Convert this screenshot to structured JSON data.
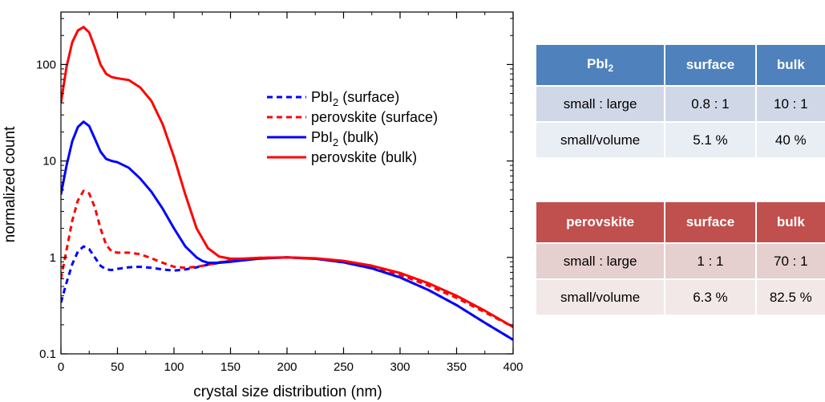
{
  "chart_data": {
    "type": "line",
    "xlabel": "crystal size distribution (nm)",
    "ylabel": "normalized count",
    "xlim": [
      0,
      400
    ],
    "ylim": [
      0.1,
      350
    ],
    "y_scale": "log",
    "x_ticks": [
      0,
      50,
      100,
      150,
      200,
      250,
      300,
      350,
      400
    ],
    "y_ticks": [
      0.1,
      1,
      10,
      100
    ],
    "y_tick_labels": [
      "0.1",
      "1",
      "10",
      "100"
    ],
    "grid": false,
    "legend_position": "upper-right",
    "series": [
      {
        "name": "PbI2 (surface)",
        "color": "#0000ff",
        "style": "dashed",
        "x": [
          0,
          5,
          10,
          15,
          20,
          25,
          30,
          35,
          40,
          45,
          50,
          60,
          70,
          80,
          90,
          100,
          110,
          120,
          130,
          140,
          150,
          160,
          175,
          200,
          225,
          250,
          275,
          300,
          325,
          350,
          375,
          400
        ],
        "y": [
          0.34,
          0.55,
          0.85,
          1.15,
          1.3,
          1.22,
          1.0,
          0.82,
          0.75,
          0.74,
          0.76,
          0.79,
          0.8,
          0.78,
          0.75,
          0.73,
          0.75,
          0.79,
          0.84,
          0.88,
          0.92,
          0.95,
          0.98,
          1.0,
          0.97,
          0.89,
          0.77,
          0.62,
          0.46,
          0.32,
          0.21,
          0.14
        ]
      },
      {
        "name": "perovskite (surface)",
        "color": "#ff0000",
        "style": "dashed",
        "x": [
          0,
          5,
          10,
          15,
          20,
          25,
          30,
          35,
          40,
          45,
          50,
          60,
          70,
          80,
          90,
          100,
          110,
          120,
          130,
          140,
          150,
          160,
          175,
          200,
          225,
          250,
          275,
          300,
          325,
          350,
          375,
          400
        ],
        "y": [
          0.6,
          1.2,
          2.4,
          3.9,
          4.9,
          4.6,
          3.3,
          2.0,
          1.35,
          1.15,
          1.12,
          1.12,
          1.08,
          0.98,
          0.88,
          0.8,
          0.78,
          0.8,
          0.84,
          0.89,
          0.93,
          0.96,
          0.99,
          1.0,
          0.97,
          0.9,
          0.8,
          0.66,
          0.51,
          0.38,
          0.27,
          0.19
        ]
      },
      {
        "name": "PbI2 (bulk)",
        "color": "#0000ff",
        "style": "solid",
        "x": [
          0,
          5,
          10,
          15,
          20,
          25,
          30,
          35,
          40,
          45,
          50,
          60,
          70,
          80,
          90,
          100,
          110,
          120,
          125,
          130,
          140,
          150,
          160,
          175,
          200,
          225,
          250,
          275,
          300,
          325,
          350,
          375,
          400
        ],
        "y": [
          4.5,
          9.0,
          16,
          22.5,
          25.5,
          23,
          17,
          12.5,
          10.5,
          10.0,
          9.7,
          8.5,
          6.6,
          4.8,
          3.2,
          2.0,
          1.3,
          1.0,
          0.92,
          0.88,
          0.88,
          0.9,
          0.93,
          0.97,
          1.0,
          0.97,
          0.89,
          0.77,
          0.62,
          0.46,
          0.32,
          0.21,
          0.14
        ]
      },
      {
        "name": "perovskite (bulk)",
        "color": "#ff0000",
        "style": "solid",
        "x": [
          0,
          5,
          10,
          15,
          20,
          25,
          30,
          35,
          40,
          45,
          50,
          60,
          70,
          80,
          90,
          100,
          110,
          120,
          130,
          140,
          150,
          160,
          175,
          200,
          225,
          250,
          275,
          300,
          325,
          350,
          375,
          400
        ],
        "y": [
          40,
          95,
          170,
          225,
          245,
          215,
          150,
          100,
          80,
          74,
          72,
          69,
          58,
          42,
          24,
          11,
          4.5,
          2.0,
          1.25,
          1.02,
          0.97,
          0.97,
          0.99,
          1.0,
          0.98,
          0.92,
          0.82,
          0.69,
          0.54,
          0.4,
          0.28,
          0.19
        ]
      }
    ]
  },
  "legend": [
    {
      "name": "PbI",
      "sub": "2",
      "tail": " (surface)"
    },
    {
      "name": "perovskite",
      "sub": "",
      "tail": " (surface)"
    },
    {
      "name": "PbI",
      "sub": "2",
      "tail": " (bulk)"
    },
    {
      "name": "perovskite",
      "sub": "",
      "tail": " (bulk)"
    }
  ],
  "table_pbi2": {
    "header": {
      "name": "PbI",
      "sub": "2",
      "col1": "surface",
      "col2": "bulk"
    },
    "rows": [
      [
        "small : large",
        "0.8 : 1",
        "10 : 1"
      ],
      [
        "small/volume",
        "5.1 %",
        "40 %"
      ]
    ]
  },
  "table_perovskite": {
    "header": {
      "name": "perovskite",
      "col1": "surface",
      "col2": "bulk"
    },
    "rows": [
      [
        "small : large",
        "1 : 1",
        "70 : 1"
      ],
      [
        "small/volume",
        "6.3 %",
        "82.5 %"
      ]
    ]
  },
  "colors": {
    "blue_series": "#0000ff",
    "red_series": "#ff0000",
    "pbi2_header": "#4f81bd",
    "perovskite_header": "#c0504d"
  }
}
